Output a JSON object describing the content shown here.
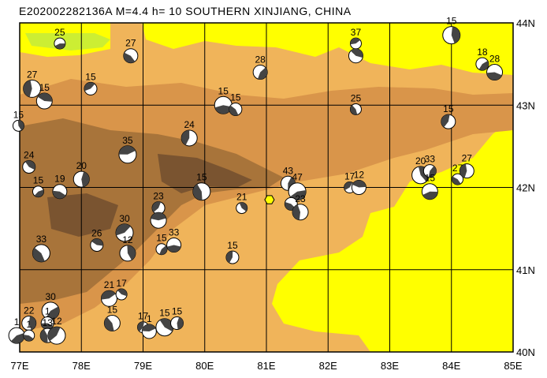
{
  "title": "E202002282136A M=4.4 h= 10 SOUTHERN XINJIANG, CHINA",
  "lon_range": [
    77,
    85
  ],
  "lat_range": [
    40,
    44
  ],
  "lon_ticks": [
    "77E",
    "78E",
    "79E",
    "80E",
    "81E",
    "82E",
    "83E",
    "84E",
    "85E"
  ],
  "lat_ticks": [
    "40N",
    "41N",
    "42N",
    "43N",
    "44N"
  ],
  "colors": {
    "frame": "#000000",
    "grid": "#000000",
    "lowland_yellow": "#ffff00",
    "lime": "#ccee33",
    "light_orange": "#f0b45a",
    "mid_orange": "#d9954a",
    "dark_brown": "#a8743a",
    "peak_brown": "#7a5430",
    "beachball_dark": "#444444",
    "beachball_light": "#ffffff",
    "epicenter": "#ffff00"
  },
  "epicenter": {
    "lon": 81.05,
    "lat": 41.85
  },
  "events": [
    {
      "lon": 77.65,
      "lat": 43.75,
      "mag": "25"
    },
    {
      "lon": 78.8,
      "lat": 43.6,
      "mag": "27"
    },
    {
      "lon": 77.2,
      "lat": 43.2,
      "mag": "27"
    },
    {
      "lon": 78.15,
      "lat": 43.2,
      "mag": "15"
    },
    {
      "lon": 77.4,
      "lat": 43.05,
      "mag": "15"
    },
    {
      "lon": 76.98,
      "lat": 42.75,
      "mag": "15"
    },
    {
      "lon": 80.9,
      "lat": 43.4,
      "mag": "28"
    },
    {
      "lon": 80.3,
      "lat": 43.0,
      "mag": "15"
    },
    {
      "lon": 80.5,
      "lat": 42.95,
      "mag": "15"
    },
    {
      "lon": 79.75,
      "lat": 42.6,
      "mag": "24"
    },
    {
      "lon": 82.45,
      "lat": 43.75,
      "mag": "37"
    },
    {
      "lon": 82.45,
      "lat": 43.6,
      "mag": ""
    },
    {
      "lon": 84.0,
      "lat": 43.85,
      "mag": "15"
    },
    {
      "lon": 84.5,
      "lat": 43.5,
      "mag": "18"
    },
    {
      "lon": 84.7,
      "lat": 43.4,
      "mag": "28"
    },
    {
      "lon": 82.45,
      "lat": 42.95,
      "mag": "25"
    },
    {
      "lon": 83.95,
      "lat": 42.8,
      "mag": "15"
    },
    {
      "lon": 78.75,
      "lat": 42.4,
      "mag": "35"
    },
    {
      "lon": 77.15,
      "lat": 42.25,
      "mag": "24"
    },
    {
      "lon": 78.0,
      "lat": 42.1,
      "mag": "20"
    },
    {
      "lon": 77.3,
      "lat": 41.95,
      "mag": "15"
    },
    {
      "lon": 77.65,
      "lat": 41.95,
      "mag": "19"
    },
    {
      "lon": 79.95,
      "lat": 41.95,
      "mag": "15"
    },
    {
      "lon": 79.25,
      "lat": 41.75,
      "mag": "23"
    },
    {
      "lon": 79.25,
      "lat": 41.6,
      "mag": ""
    },
    {
      "lon": 80.6,
      "lat": 41.75,
      "mag": "21"
    },
    {
      "lon": 81.35,
      "lat": 42.05,
      "mag": "43"
    },
    {
      "lon": 81.5,
      "lat": 41.95,
      "mag": "47"
    },
    {
      "lon": 81.4,
      "lat": 41.8,
      "mag": ""
    },
    {
      "lon": 81.55,
      "lat": 41.7,
      "mag": "23"
    },
    {
      "lon": 82.35,
      "lat": 42.0,
      "mag": "17"
    },
    {
      "lon": 82.5,
      "lat": 42.0,
      "mag": "12"
    },
    {
      "lon": 83.5,
      "lat": 42.15,
      "mag": "20"
    },
    {
      "lon": 83.65,
      "lat": 42.2,
      "mag": "33"
    },
    {
      "lon": 83.65,
      "lat": 41.95,
      "mag": "15"
    },
    {
      "lon": 84.1,
      "lat": 42.1,
      "mag": "27"
    },
    {
      "lon": 84.25,
      "lat": 42.2,
      "mag": "27"
    },
    {
      "lon": 78.7,
      "lat": 41.45,
      "mag": "30"
    },
    {
      "lon": 78.25,
      "lat": 41.3,
      "mag": "26"
    },
    {
      "lon": 78.75,
      "lat": 41.2,
      "mag": "12"
    },
    {
      "lon": 79.3,
      "lat": 41.25,
      "mag": "15"
    },
    {
      "lon": 79.5,
      "lat": 41.3,
      "mag": "33"
    },
    {
      "lon": 77.35,
      "lat": 41.2,
      "mag": "33"
    },
    {
      "lon": 80.45,
      "lat": 41.15,
      "mag": "15"
    },
    {
      "lon": 78.45,
      "lat": 40.65,
      "mag": "21"
    },
    {
      "lon": 78.65,
      "lat": 40.7,
      "mag": "17"
    },
    {
      "lon": 77.15,
      "lat": 40.35,
      "mag": "22"
    },
    {
      "lon": 77.5,
      "lat": 40.5,
      "mag": "30"
    },
    {
      "lon": 77.45,
      "lat": 40.35,
      "mag": "1"
    },
    {
      "lon": 78.5,
      "lat": 40.35,
      "mag": "15"
    },
    {
      "lon": 79.0,
      "lat": 40.3,
      "mag": "17"
    },
    {
      "lon": 79.1,
      "lat": 40.25,
      "mag": "1"
    },
    {
      "lon": 79.35,
      "lat": 40.3,
      "mag": "15"
    },
    {
      "lon": 79.55,
      "lat": 40.35,
      "mag": "15"
    },
    {
      "lon": 76.95,
      "lat": 40.2,
      "mag": "1"
    },
    {
      "lon": 77.15,
      "lat": 40.2,
      "mag": "1"
    },
    {
      "lon": 77.45,
      "lat": 40.2,
      "mag": "13"
    },
    {
      "lon": 77.6,
      "lat": 40.2,
      "mag": "12"
    }
  ]
}
